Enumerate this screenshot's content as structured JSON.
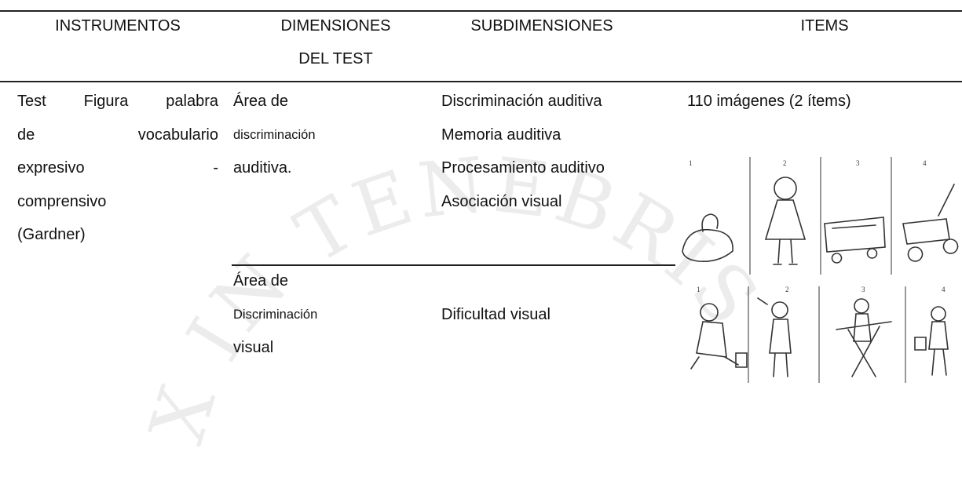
{
  "watermark": "X IN TENEBRIS",
  "table": {
    "header": [
      [
        "INSTRUMENTOS"
      ],
      [
        "DIMENSIONES",
        "DEL TEST"
      ],
      [
        "SUBDIMENSIONES"
      ],
      [
        "ITEMS"
      ]
    ],
    "rows": [
      {
        "instrumento": [
          "Test Figura palabra",
          "de vocabulario",
          "expresivo -",
          "comprensivo",
          "(Gardner)"
        ],
        "dimension": [
          "Área de",
          "discriminación",
          "auditiva."
        ],
        "subdimensiones": [
          "Discriminación auditiva",
          "Memoria auditiva",
          "Procesamiento auditivo",
          "Asociación visual"
        ],
        "items": "110 imágenes (2 ítems)",
        "image_labels": [
          "1",
          "2",
          "3",
          "4"
        ]
      },
      {
        "dimension": [
          "Área de",
          "Discriminación",
          "visual"
        ],
        "subdimensiones": [
          "Dificultad visual"
        ],
        "image_labels": [
          "1",
          "2",
          "3",
          "4"
        ]
      }
    ]
  }
}
